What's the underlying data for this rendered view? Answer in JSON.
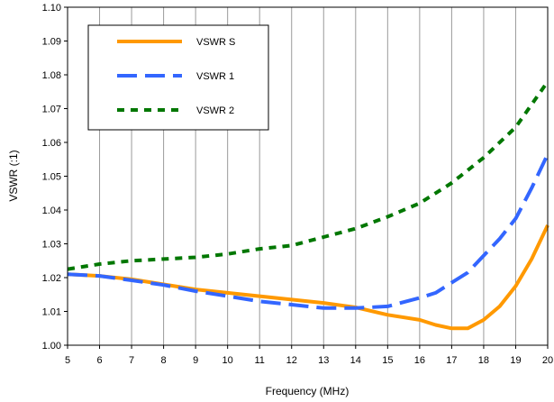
{
  "chart_data": {
    "type": "line",
    "title": "",
    "xlabel": "Frequency (MHz)",
    "ylabel": "VSWR (:1)",
    "xlim": [
      5,
      20
    ],
    "ylim": [
      1.0,
      1.1
    ],
    "xticks": [
      "5",
      "6",
      "7",
      "8",
      "9",
      "10",
      "11",
      "12",
      "13",
      "14",
      "15",
      "16",
      "17",
      "18",
      "19",
      "20"
    ],
    "yticks": [
      "1.00",
      "1.01",
      "1.02",
      "1.03",
      "1.04",
      "1.05",
      "1.06",
      "1.07",
      "1.08",
      "1.09",
      "1.10"
    ],
    "grid": "vertical",
    "legend_position": "top-left",
    "series": [
      {
        "name": "VSWR S",
        "color": "#ff9900",
        "dash": "solid",
        "points": [
          [
            5,
            1.021
          ],
          [
            6,
            1.0205
          ],
          [
            7,
            1.0195
          ],
          [
            8,
            1.018
          ],
          [
            9,
            1.0165
          ],
          [
            10,
            1.0155
          ],
          [
            11,
            1.0145
          ],
          [
            12,
            1.0135
          ],
          [
            13,
            1.0125
          ],
          [
            14,
            1.0112
          ],
          [
            15,
            1.009
          ],
          [
            16,
            1.0075
          ],
          [
            16.5,
            1.006
          ],
          [
            17,
            1.005
          ],
          [
            17.5,
            1.005
          ],
          [
            18,
            1.0075
          ],
          [
            18.5,
            1.0115
          ],
          [
            19,
            1.0175
          ],
          [
            19.5,
            1.0255
          ],
          [
            20,
            1.0355
          ]
        ]
      },
      {
        "name": "VSWR 1",
        "color": "#3366ff",
        "dash": "long-dash",
        "points": [
          [
            5,
            1.021
          ],
          [
            6,
            1.0205
          ],
          [
            7,
            1.0192
          ],
          [
            8,
            1.0178
          ],
          [
            9,
            1.016
          ],
          [
            10,
            1.0145
          ],
          [
            11,
            1.013
          ],
          [
            12,
            1.012
          ],
          [
            13,
            1.011
          ],
          [
            14,
            1.011
          ],
          [
            15,
            1.0115
          ],
          [
            16,
            1.014
          ],
          [
            16.5,
            1.0155
          ],
          [
            17,
            1.0185
          ],
          [
            17.5,
            1.0215
          ],
          [
            18,
            1.0265
          ],
          [
            18.5,
            1.0315
          ],
          [
            19,
            1.0375
          ],
          [
            19.5,
            1.0465
          ],
          [
            20,
            1.0565
          ]
        ]
      },
      {
        "name": "VSWR 2",
        "color": "#007700",
        "dash": "short-dash",
        "points": [
          [
            5,
            1.0225
          ],
          [
            6,
            1.024
          ],
          [
            7,
            1.025
          ],
          [
            8,
            1.0255
          ],
          [
            9,
            1.026
          ],
          [
            10,
            1.027
          ],
          [
            11,
            1.0285
          ],
          [
            12,
            1.0295
          ],
          [
            13,
            1.032
          ],
          [
            14,
            1.0345
          ],
          [
            15,
            1.038
          ],
          [
            16,
            1.042
          ],
          [
            17,
            1.048
          ],
          [
            18,
            1.0555
          ],
          [
            19,
            1.0645
          ],
          [
            20,
            1.078
          ]
        ]
      }
    ]
  }
}
